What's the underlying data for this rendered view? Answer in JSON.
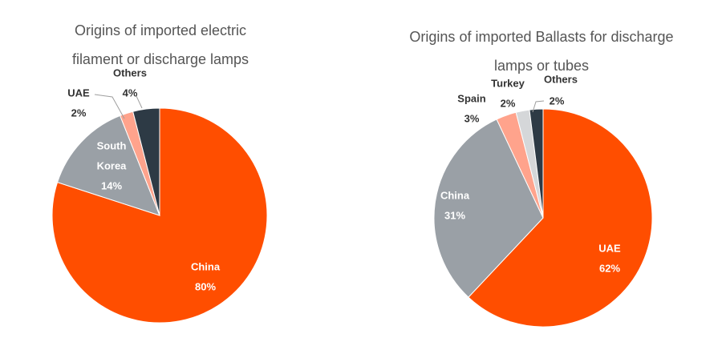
{
  "chart_data": [
    {
      "type": "pie",
      "title_lines": [
        "Origins of imported electric",
        "filament or discharge lamps"
      ],
      "slices": [
        {
          "label": "China",
          "value": 80,
          "pct_label": "80%",
          "color": "#FF4E00",
          "label_color": "#ffffff"
        },
        {
          "label": "South Korea",
          "label_lines": [
            "South",
            "Korea"
          ],
          "value": 14,
          "pct_label": "14%",
          "color": "#9AA0A6",
          "label_color": "#ffffff"
        },
        {
          "label": "UAE",
          "value": 2,
          "pct_label": "2%",
          "color": "#FFA38C",
          "label_color": "#333333"
        },
        {
          "label": "Others",
          "value": 4,
          "pct_label": "4%",
          "color": "#2D3A45",
          "label_color": "#333333"
        }
      ]
    },
    {
      "type": "pie",
      "title_lines": [
        "Origins of imported Ballasts for discharge",
        "lamps or tubes"
      ],
      "slices": [
        {
          "label": "UAE",
          "value": 62,
          "pct_label": "62%",
          "color": "#FF4E00",
          "label_color": "#ffffff"
        },
        {
          "label": "China",
          "value": 31,
          "pct_label": "31%",
          "color": "#9AA0A6",
          "label_color": "#ffffff"
        },
        {
          "label": "Spain",
          "value": 3,
          "pct_label": "3%",
          "color": "#FFA38C",
          "label_color": "#333333"
        },
        {
          "label": "Turkey",
          "value": 2,
          "pct_label": "2%",
          "color": "#D5D7D9",
          "label_color": "#333333"
        },
        {
          "label": "Others",
          "value": 2,
          "pct_label": "2%",
          "color": "#2D3A45",
          "label_color": "#333333"
        }
      ]
    }
  ]
}
